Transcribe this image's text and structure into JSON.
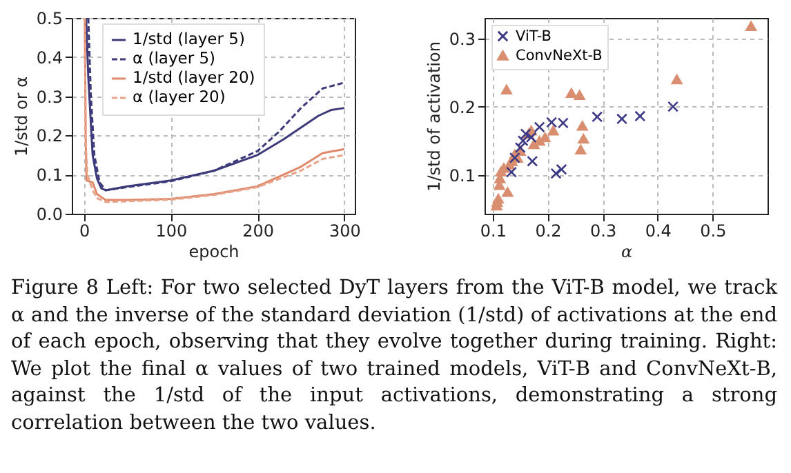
{
  "chart_data": [
    {
      "type": "line",
      "xlabel": "epoch",
      "ylabel": "1/std or α",
      "xlim": [
        -14,
        312
      ],
      "ylim": [
        0,
        0.5
      ],
      "xticks": [
        0,
        100,
        200,
        300
      ],
      "yticks": [
        {
          "value": 0,
          "label": "0.0"
        },
        0.1,
        0.2,
        0.3,
        0.4,
        0.5
      ],
      "grid": true,
      "legend": "top left",
      "annotations": [
        "Figure 8  Left: For two selected DyT layers from the ViT-B model, we track α and the inverse of the standard deviation (1/std) of activations at the end of each epoch, observing that they evolve together during training. Right: We plot the final α values of two trained models, ViT-B and ConvNeXt-B, against the 1/std of the input activations, demonstrating a strong correlation between the two values."
      ],
      "series": [
        {
          "name": "1/std (layer 5)",
          "color": "#3c3a7a",
          "line_style": "solid",
          "x": [
            2.5,
            5,
            10,
            15,
            20,
            25,
            50,
            100,
            150,
            200,
            230,
            250,
            270,
            285,
            300
          ],
          "values": [
            0.5,
            0.35,
            0.15,
            0.09,
            0.065,
            0.06,
            0.07,
            0.085,
            0.11,
            0.15,
            0.19,
            0.22,
            0.25,
            0.265,
            0.27
          ]
        },
        {
          "name": "α (layer 5)",
          "color": "#3c3a7a",
          "line_style": "dashed",
          "x": [
            5,
            8,
            12,
            18,
            25,
            50,
            100,
            150,
            200,
            225,
            250,
            275,
            300
          ],
          "values": [
            0.5,
            0.3,
            0.15,
            0.08,
            0.06,
            0.068,
            0.083,
            0.11,
            0.16,
            0.21,
            0.27,
            0.32,
            0.335
          ]
        },
        {
          "name": "1/std (layer 20)",
          "color": "#e0896a",
          "line_style": "solid",
          "x": [
            1,
            2,
            3,
            10,
            15,
            25,
            50,
            100,
            150,
            200,
            250,
            275,
            300
          ],
          "values": [
            0.5,
            0.2,
            0.085,
            0.08,
            0.05,
            0.035,
            0.035,
            0.038,
            0.05,
            0.07,
            0.12,
            0.155,
            0.165
          ]
        },
        {
          "name": "α (layer 20)",
          "color": "#e8a48a",
          "line_style": "dashed",
          "x": [
            1,
            2,
            4,
            10,
            15,
            25,
            50,
            100,
            150,
            200,
            250,
            275,
            300
          ],
          "values": [
            0.5,
            0.18,
            0.1,
            0.06,
            0.04,
            0.03,
            0.032,
            0.036,
            0.048,
            0.068,
            0.11,
            0.14,
            0.15
          ]
        }
      ]
    },
    {
      "type": "scatter",
      "xlabel": "α",
      "ylabel": "1/std of activation",
      "xlim": [
        0.085,
        0.6
      ],
      "ylim": [
        0.043,
        0.33
      ],
      "xticks": [
        0.1,
        0.2,
        0.3,
        0.4,
        0.5
      ],
      "yticks": [
        0.1,
        0.2,
        0.3
      ],
      "grid": true,
      "legend": "top left",
      "series": [
        {
          "name": "ViT-B",
          "color": "#3d3a85",
          "marker": "cross",
          "x": [
            0.134,
            0.14,
            0.15,
            0.155,
            0.16,
            0.17,
            0.172,
            0.185,
            0.207,
            0.215,
            0.225,
            0.228,
            0.29,
            0.335,
            0.368,
            0.428
          ],
          "values": [
            0.104,
            0.125,
            0.14,
            0.15,
            0.16,
            0.155,
            0.12,
            0.17,
            0.177,
            0.102,
            0.108,
            0.176,
            0.185,
            0.182,
            0.186,
            0.2
          ]
        },
        {
          "name": "ConvNeXt-B",
          "color": "#d98e70",
          "marker": "triangle",
          "x": [
            0.107,
            0.108,
            0.11,
            0.112,
            0.113,
            0.115,
            0.12,
            0.125,
            0.127,
            0.13,
            0.135,
            0.14,
            0.145,
            0.15,
            0.165,
            0.17,
            0.175,
            0.185,
            0.195,
            0.21,
            0.243,
            0.258,
            0.26,
            0.263,
            0.265,
            0.435,
            0.57
          ],
          "values": [
            0.055,
            0.06,
            0.065,
            0.085,
            0.095,
            0.105,
            0.11,
            0.225,
            0.075,
            0.115,
            0.12,
            0.13,
            0.125,
            0.135,
            0.16,
            0.165,
            0.145,
            0.15,
            0.155,
            0.165,
            0.22,
            0.217,
            0.137,
            0.172,
            0.153,
            0.24,
            0.318
          ]
        }
      ]
    }
  ]
}
